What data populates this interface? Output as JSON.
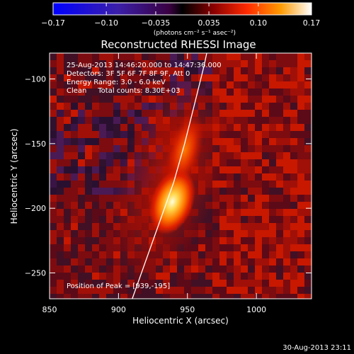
{
  "chart_data": {
    "type": "heatmap",
    "title": "Reconstructed RHESSI Image",
    "xlabel": "Heliocentric X (arcsec)",
    "ylabel": "Heliocentric Y (arcsec)",
    "xlim": [
      850,
      1040
    ],
    "ylim": [
      -270,
      -80
    ],
    "x_ticks": [
      850,
      900,
      950,
      1000
    ],
    "y_ticks": [
      -100,
      -150,
      -200,
      -250
    ],
    "colorbar": {
      "min": -0.17,
      "max": 0.17,
      "ticks": [
        -0.17,
        -0.1,
        -0.035,
        0.035,
        0.1,
        0.17
      ],
      "tick_labels": [
        "−0.17",
        "−0.10",
        "−0.035",
        "0.035",
        "0.10",
        "0.17"
      ],
      "units_label": "(photons cm⁻² s⁻¹ asec⁻²)"
    },
    "info_lines": [
      "25-Aug-2013 14:46:20.000 to 14:47:36.000",
      "Detectors: 3F 5F 6F 7F 8F 9F, Att 0",
      "Energy Range: 3.0 - 6.0 keV",
      "Clean     Total counts: 8.30E+03"
    ],
    "peak_label": "Position of Peak = [939,-195]",
    "peak": {
      "x": 939,
      "y": -195,
      "value": 0.17
    },
    "secondary_source": {
      "x": 948,
      "y": -155,
      "value": 0.06
    },
    "limb_curve": [
      [
        910,
        -270
      ],
      [
        920,
        -240
      ],
      [
        930,
        -210
      ],
      [
        940,
        -180
      ],
      [
        948,
        -150
      ],
      [
        955,
        -120
      ],
      [
        962,
        -90
      ],
      [
        964,
        -80
      ]
    ],
    "timestamp": "30-Aug-2013 23:11"
  },
  "colors": {
    "background": "#000000",
    "text": "#ffffff",
    "limb": "#ffffff"
  }
}
